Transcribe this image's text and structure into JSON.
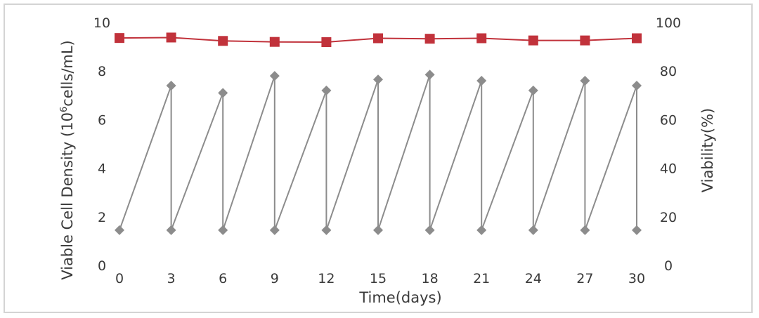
{
  "chart_data": {
    "type": "line",
    "xlabel": "Time(days)",
    "ylabel_left": {
      "main": "Viable Cell Density (10",
      "superscript": "6",
      "tail": "cells/mL)"
    },
    "ylabel_right": "Viability(%)",
    "x_ticks": [
      "0",
      "3",
      "6",
      "9",
      "12",
      "15",
      "18",
      "21",
      "24",
      "27",
      "30"
    ],
    "y_left_ticks": [
      "0",
      "2",
      "4",
      "6",
      "8",
      "10"
    ],
    "y_right_ticks": [
      "0",
      "20",
      "40",
      "60",
      "80",
      "100"
    ],
    "xlim": [
      0,
      30
    ],
    "ylim_left": [
      0,
      10
    ],
    "ylim_right": [
      0,
      100
    ],
    "grid": false,
    "series": [
      {
        "axis": "left",
        "marker": "diamond",
        "color": "#8c8c8c",
        "points": [
          [
            0,
            1.45
          ],
          [
            3,
            7.4
          ],
          [
            3,
            1.45
          ],
          [
            6,
            7.1
          ],
          [
            6,
            1.45
          ],
          [
            9,
            7.8
          ],
          [
            9,
            1.45
          ],
          [
            12,
            7.2
          ],
          [
            12,
            1.45
          ],
          [
            15,
            7.65
          ],
          [
            15,
            1.45
          ],
          [
            18,
            7.85
          ],
          [
            18,
            1.45
          ],
          [
            21,
            7.6
          ],
          [
            21,
            1.45
          ],
          [
            24,
            7.2
          ],
          [
            24,
            1.45
          ],
          [
            27,
            7.6
          ],
          [
            27,
            1.45
          ],
          [
            30,
            7.4
          ],
          [
            30,
            1.45
          ]
        ]
      },
      {
        "axis": "right",
        "marker": "square",
        "color": "#c1323b",
        "points": [
          [
            0,
            93.6
          ],
          [
            3,
            93.8
          ],
          [
            6,
            92.4
          ],
          [
            9,
            92.0
          ],
          [
            12,
            91.9
          ],
          [
            15,
            93.5
          ],
          [
            18,
            93.3
          ],
          [
            21,
            93.5
          ],
          [
            24,
            92.6
          ],
          [
            27,
            92.6
          ],
          [
            30,
            93.5
          ]
        ]
      }
    ]
  }
}
